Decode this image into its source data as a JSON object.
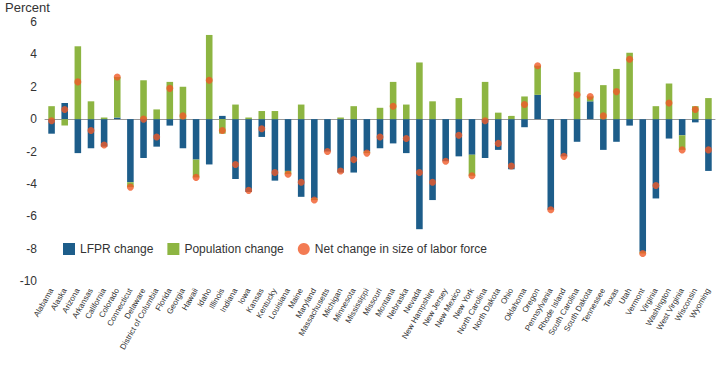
{
  "chart_data": {
    "type": "bar",
    "y_label": "Percent",
    "categories": [
      "Alabama",
      "Alaska",
      "Arizona",
      "Arkansas",
      "California",
      "Colorado",
      "Connecticut",
      "Delaware",
      "District of Columbia",
      "Florida",
      "Georgia",
      "Hawaii",
      "Idaho",
      "Illinois",
      "Indiana",
      "Iowa",
      "Kansas",
      "Kentucky",
      "Louisiana",
      "Maine",
      "Maryland",
      "Massachusetts",
      "Michigan",
      "Minnesota",
      "Mississippi",
      "Missouri",
      "Montana",
      "Nebraska",
      "Nevada",
      "New Hampshire",
      "New Jersey",
      "New Mexico",
      "New York",
      "North Carolina",
      "North Dakota",
      "Ohio",
      "Oklahoma",
      "Oregon",
      "Pennsylvania",
      "Rhode Island",
      "South Carolina",
      "South Dakota",
      "Tennessee",
      "Texas",
      "Utah",
      "Vermont",
      "Virginia",
      "Washington",
      "West Virginia",
      "Wisconsin",
      "Wyoming"
    ],
    "series": [
      {
        "name": "LFPR change",
        "type": "bar",
        "color": "#1d5d8a",
        "values": [
          -0.9,
          1.0,
          -2.1,
          -1.8,
          -1.7,
          0.1,
          -3.9,
          -2.4,
          -1.7,
          -0.4,
          -1.8,
          -2.5,
          -2.8,
          0.2,
          -3.7,
          -4.5,
          -1.1,
          -3.8,
          -3.2,
          -4.8,
          -4.9,
          -2.0,
          -3.3,
          -3.3,
          -2.0,
          -1.8,
          -1.5,
          -2.1,
          -6.8,
          -5.0,
          -2.6,
          -2.3,
          -2.2,
          -2.4,
          -1.9,
          -3.1,
          -0.5,
          1.5,
          -5.6,
          -2.3,
          -1.4,
          1.1,
          -1.9,
          -1.4,
          -0.4,
          -8.2,
          -4.9,
          -1.2,
          -1.0,
          -0.2,
          -3.2
        ]
      },
      {
        "name": "Population change",
        "type": "bar",
        "color": "#8db542",
        "values": [
          0.8,
          -0.4,
          4.5,
          1.1,
          0.1,
          2.5,
          -0.3,
          2.4,
          0.6,
          2.3,
          2.0,
          -1.1,
          5.2,
          -0.9,
          0.9,
          0.1,
          0.5,
          0.5,
          -0.2,
          0.9,
          -0.1,
          0.0,
          0.1,
          0.8,
          -0.1,
          0.7,
          2.3,
          0.9,
          3.5,
          1.1,
          0.0,
          1.3,
          -1.3,
          2.3,
          0.4,
          0.2,
          1.4,
          1.8,
          0.0,
          0.0,
          2.9,
          0.3,
          2.1,
          3.1,
          4.1,
          -0.1,
          0.8,
          2.2,
          -0.9,
          0.8,
          1.3
        ]
      },
      {
        "name": "Net change in size of labor force",
        "type": "scatter",
        "marker": "circle",
        "color": "#f05a28",
        "values": [
          -0.1,
          0.6,
          2.3,
          -0.7,
          -1.6,
          2.6,
          -4.2,
          0.0,
          -1.1,
          1.9,
          0.2,
          -3.6,
          2.4,
          -0.7,
          -2.8,
          -4.4,
          -0.6,
          -3.3,
          -3.4,
          -3.9,
          -5.0,
          -2.0,
          -3.2,
          -2.5,
          -2.1,
          -1.1,
          0.8,
          -1.2,
          -3.3,
          -3.9,
          -2.6,
          -1.0,
          -3.5,
          -0.1,
          -1.5,
          -2.9,
          0.9,
          3.3,
          -5.6,
          -2.3,
          1.5,
          1.4,
          0.2,
          1.7,
          3.7,
          -8.3,
          -4.1,
          1.0,
          -1.9,
          0.6,
          -1.9
        ]
      }
    ],
    "stacked": true,
    "ylim": [
      -10,
      6
    ],
    "yticks": [
      -10,
      -8,
      -6,
      -4,
      -2,
      0,
      2,
      4,
      6
    ],
    "grid": false,
    "legend": "lower left"
  }
}
